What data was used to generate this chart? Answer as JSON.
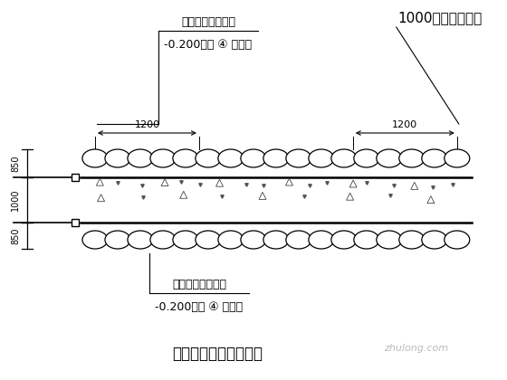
{
  "bg_color": "#ffffff",
  "title": "三轴搅拌桩平面示意图",
  "title_fontsize": 12,
  "label_top_left": "三轴水泥土搅拌桩",
  "label_top_right": "1000厚地下连续墙",
  "label_mid_top": "-0.200～第 ④ 层底部",
  "label_bottom_left": "三轴水泥土搅拌桩",
  "label_mid_bottom": "-0.200～第 ④ 层底部",
  "dim_1200_left": "1200",
  "dim_1200_right": "1200",
  "dim_850_top": "850",
  "dim_1000": "1000",
  "dim_850_bot": "850",
  "watermark": "zhulong.com",
  "line_color": "#000000"
}
